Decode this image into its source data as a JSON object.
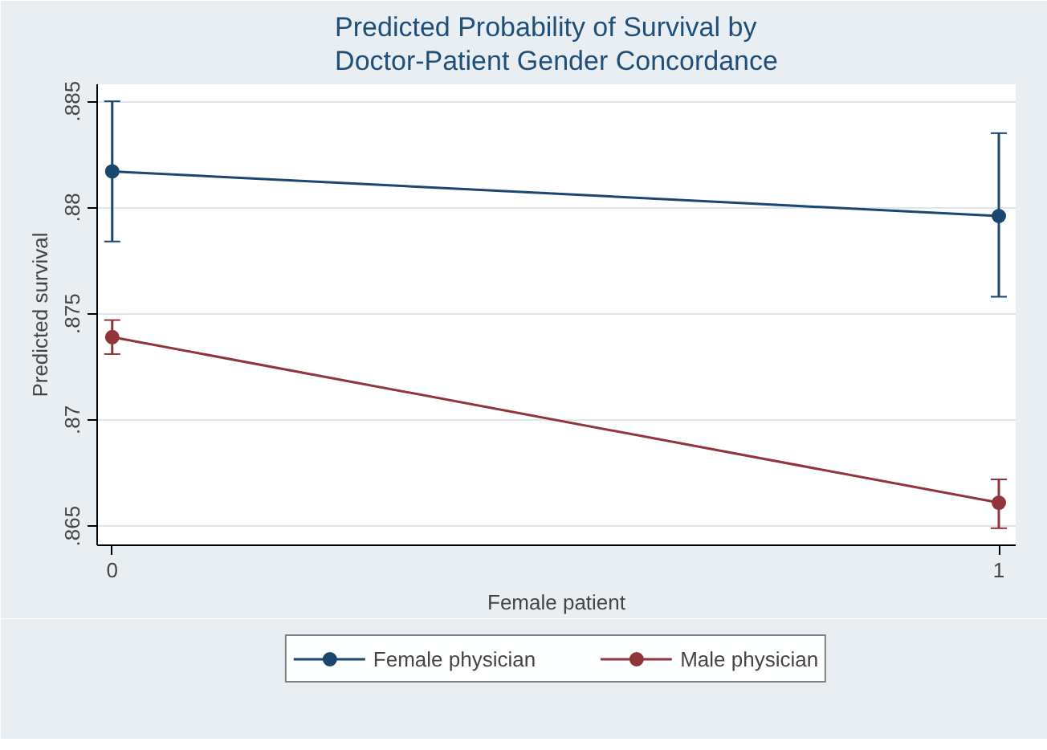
{
  "chart_data": {
    "type": "line",
    "title": "Predicted Probability of Survival by\nDoctor-Patient Gender Concordance",
    "xlabel": "Female patient",
    "ylabel": "Predicted survival",
    "x": [
      0,
      1
    ],
    "series": [
      {
        "name": "Female physician",
        "color": "#1a476f",
        "values": [
          0.8817,
          0.8796
        ],
        "errors": [
          [
            0.8784,
            0.885
          ],
          [
            0.8758,
            0.8835
          ]
        ]
      },
      {
        "name": "Male physician",
        "color": "#90353b",
        "values": [
          0.8739,
          0.8661
        ],
        "errors": [
          [
            0.8731,
            0.8747
          ],
          [
            0.8649,
            0.8672
          ]
        ]
      }
    ],
    "xlim": [
      -0.017,
      1.019
    ],
    "ylim": [
      0.8641,
      0.8858
    ],
    "xticks": [
      0,
      1
    ],
    "yticks": [
      {
        "value": 0.865,
        "label": ".865"
      },
      {
        "value": 0.87,
        "label": ".87"
      },
      {
        "value": 0.875,
        "label": ".875"
      },
      {
        "value": 0.88,
        "label": ".88"
      },
      {
        "value": 0.885,
        "label": ".885"
      }
    ],
    "grid": "y",
    "legend": "bottom",
    "marker": "circle",
    "line_style": "solid"
  }
}
